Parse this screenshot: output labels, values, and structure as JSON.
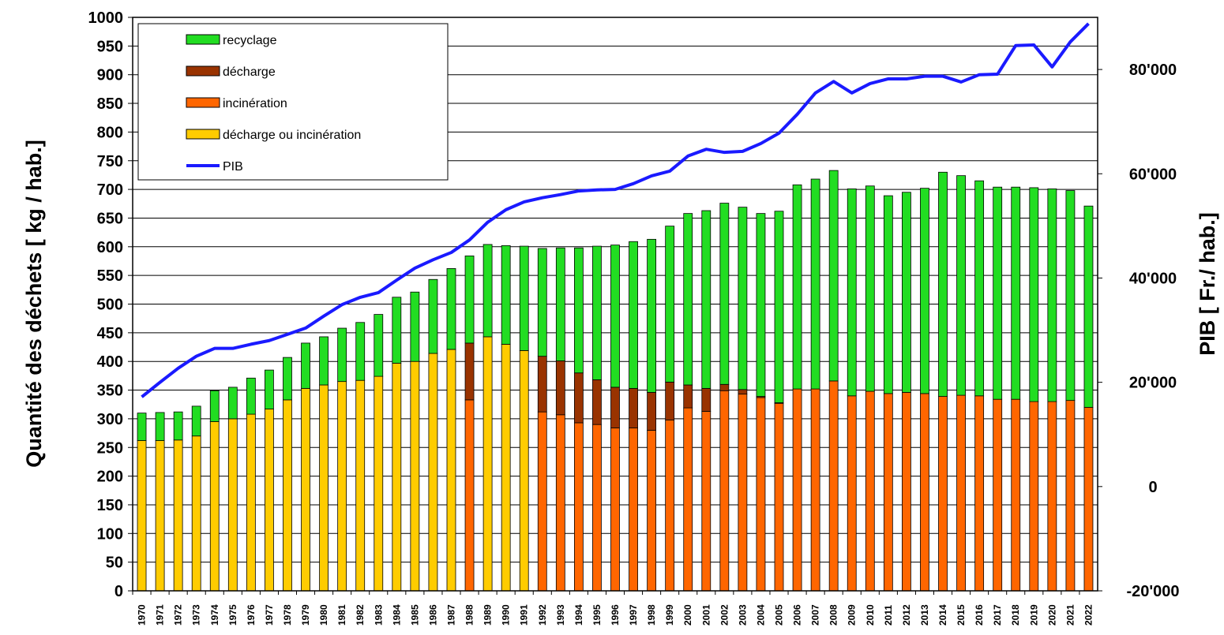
{
  "chart_data": {
    "type": "stacked-bar-line",
    "y_label": "Quantité des déchets  [ kg / hab.]",
    "y2_label": "PIB [ Fr./ hab.]",
    "categories": [
      "1970",
      "1971",
      "1972",
      "1973",
      "1974",
      "1975",
      "1976",
      "1977",
      "1978",
      "1979",
      "1980",
      "1981",
      "1982",
      "1983",
      "1984",
      "1985",
      "1986",
      "1987",
      "1988",
      "1989",
      "1990",
      "1991",
      "1992",
      "1993",
      "1994",
      "1995",
      "1996",
      "1997",
      "1998",
      "1999",
      "2000",
      "2001",
      "2002",
      "2003",
      "2004",
      "2005",
      "2006",
      "2007",
      "2008",
      "2009",
      "2010",
      "2011",
      "2012",
      "2013",
      "2014",
      "2015",
      "2016",
      "2017",
      "2018",
      "2019",
      "2020",
      "2021",
      "2022"
    ],
    "series": [
      {
        "name": "recyclage",
        "color": "#22dd22",
        "values": [
          48,
          49,
          49,
          52,
          54,
          55,
          63,
          68,
          74,
          79,
          84,
          93,
          101,
          108,
          115,
          121,
          129,
          141,
          152,
          161,
          172,
          182,
          188,
          197,
          218,
          233,
          248,
          256,
          267,
          272,
          299,
          310,
          316,
          318,
          319,
          334,
          356,
          366,
          367,
          361,
          358,
          345,
          349,
          358,
          391,
          383,
          375,
          370,
          370,
          373,
          371,
          366,
          351
        ]
      },
      {
        "name": "décharge",
        "color": "#993300",
        "values": [
          null,
          null,
          null,
          null,
          null,
          null,
          null,
          null,
          null,
          null,
          null,
          null,
          null,
          null,
          null,
          null,
          null,
          null,
          99,
          null,
          null,
          null,
          97,
          94,
          87,
          78,
          71,
          69,
          66,
          66,
          40,
          40,
          11,
          8,
          2,
          1,
          null,
          null,
          null,
          null,
          null,
          null,
          null,
          null,
          null,
          null,
          null,
          null,
          null,
          null,
          null,
          null,
          null
        ]
      },
      {
        "name": "incinération",
        "color": "#ff6600",
        "values": [
          null,
          null,
          null,
          null,
          null,
          null,
          null,
          null,
          null,
          null,
          null,
          null,
          null,
          null,
          null,
          null,
          null,
          null,
          333,
          null,
          null,
          null,
          312,
          307,
          293,
          290,
          284,
          284,
          280,
          298,
          319,
          313,
          349,
          343,
          337,
          327,
          352,
          352,
          366,
          340,
          348,
          344,
          346,
          344,
          339,
          341,
          340,
          334,
          334,
          330,
          330,
          332,
          320
        ]
      },
      {
        "name": "décharge ou incinération",
        "color": "#ffcc00",
        "values": [
          262,
          262,
          263,
          270,
          295,
          300,
          308,
          317,
          333,
          353,
          359,
          365,
          367,
          374,
          397,
          400,
          414,
          421,
          null,
          443,
          430,
          419,
          null,
          null,
          null,
          null,
          null,
          null,
          null,
          null,
          null,
          null,
          null,
          null,
          null,
          null,
          null,
          null,
          null,
          null,
          null,
          null,
          null,
          null,
          null,
          null,
          null,
          null,
          null,
          null,
          null,
          null,
          null
        ]
      },
      {
        "name": "PIB",
        "color": "#1a1aff",
        "axis": "y2",
        "values": [
          17200,
          20000,
          22700,
          25000,
          26500,
          26500,
          27300,
          28000,
          29200,
          30400,
          32700,
          34900,
          36300,
          37200,
          39600,
          41900,
          43500,
          44900,
          47300,
          50700,
          53100,
          54600,
          55400,
          56000,
          56700,
          56900,
          57000,
          58100,
          59600,
          60500,
          63400,
          64700,
          64100,
          64300,
          65800,
          67800,
          71400,
          75500,
          77700,
          75500,
          77300,
          78200,
          78200,
          78700,
          78700,
          77600,
          79000,
          79100,
          84600,
          84700,
          80500,
          85300,
          88800
        ]
      }
    ],
    "ylim": [
      0,
      1000
    ],
    "yticks": [
      0,
      50,
      100,
      150,
      200,
      250,
      300,
      350,
      400,
      450,
      500,
      550,
      600,
      650,
      700,
      750,
      800,
      850,
      900,
      950,
      1000
    ],
    "y2lim": [
      -20000,
      90000
    ],
    "y2ticks": [
      {
        "value": -20000,
        "label": "-20'000"
      },
      0,
      {
        "value": 20000,
        "label": "20'000"
      },
      {
        "value": 40000,
        "label": "40'000"
      },
      {
        "value": 60000,
        "label": "60'000"
      },
      {
        "value": 80000,
        "label": "80'000"
      }
    ],
    "grid": true
  }
}
